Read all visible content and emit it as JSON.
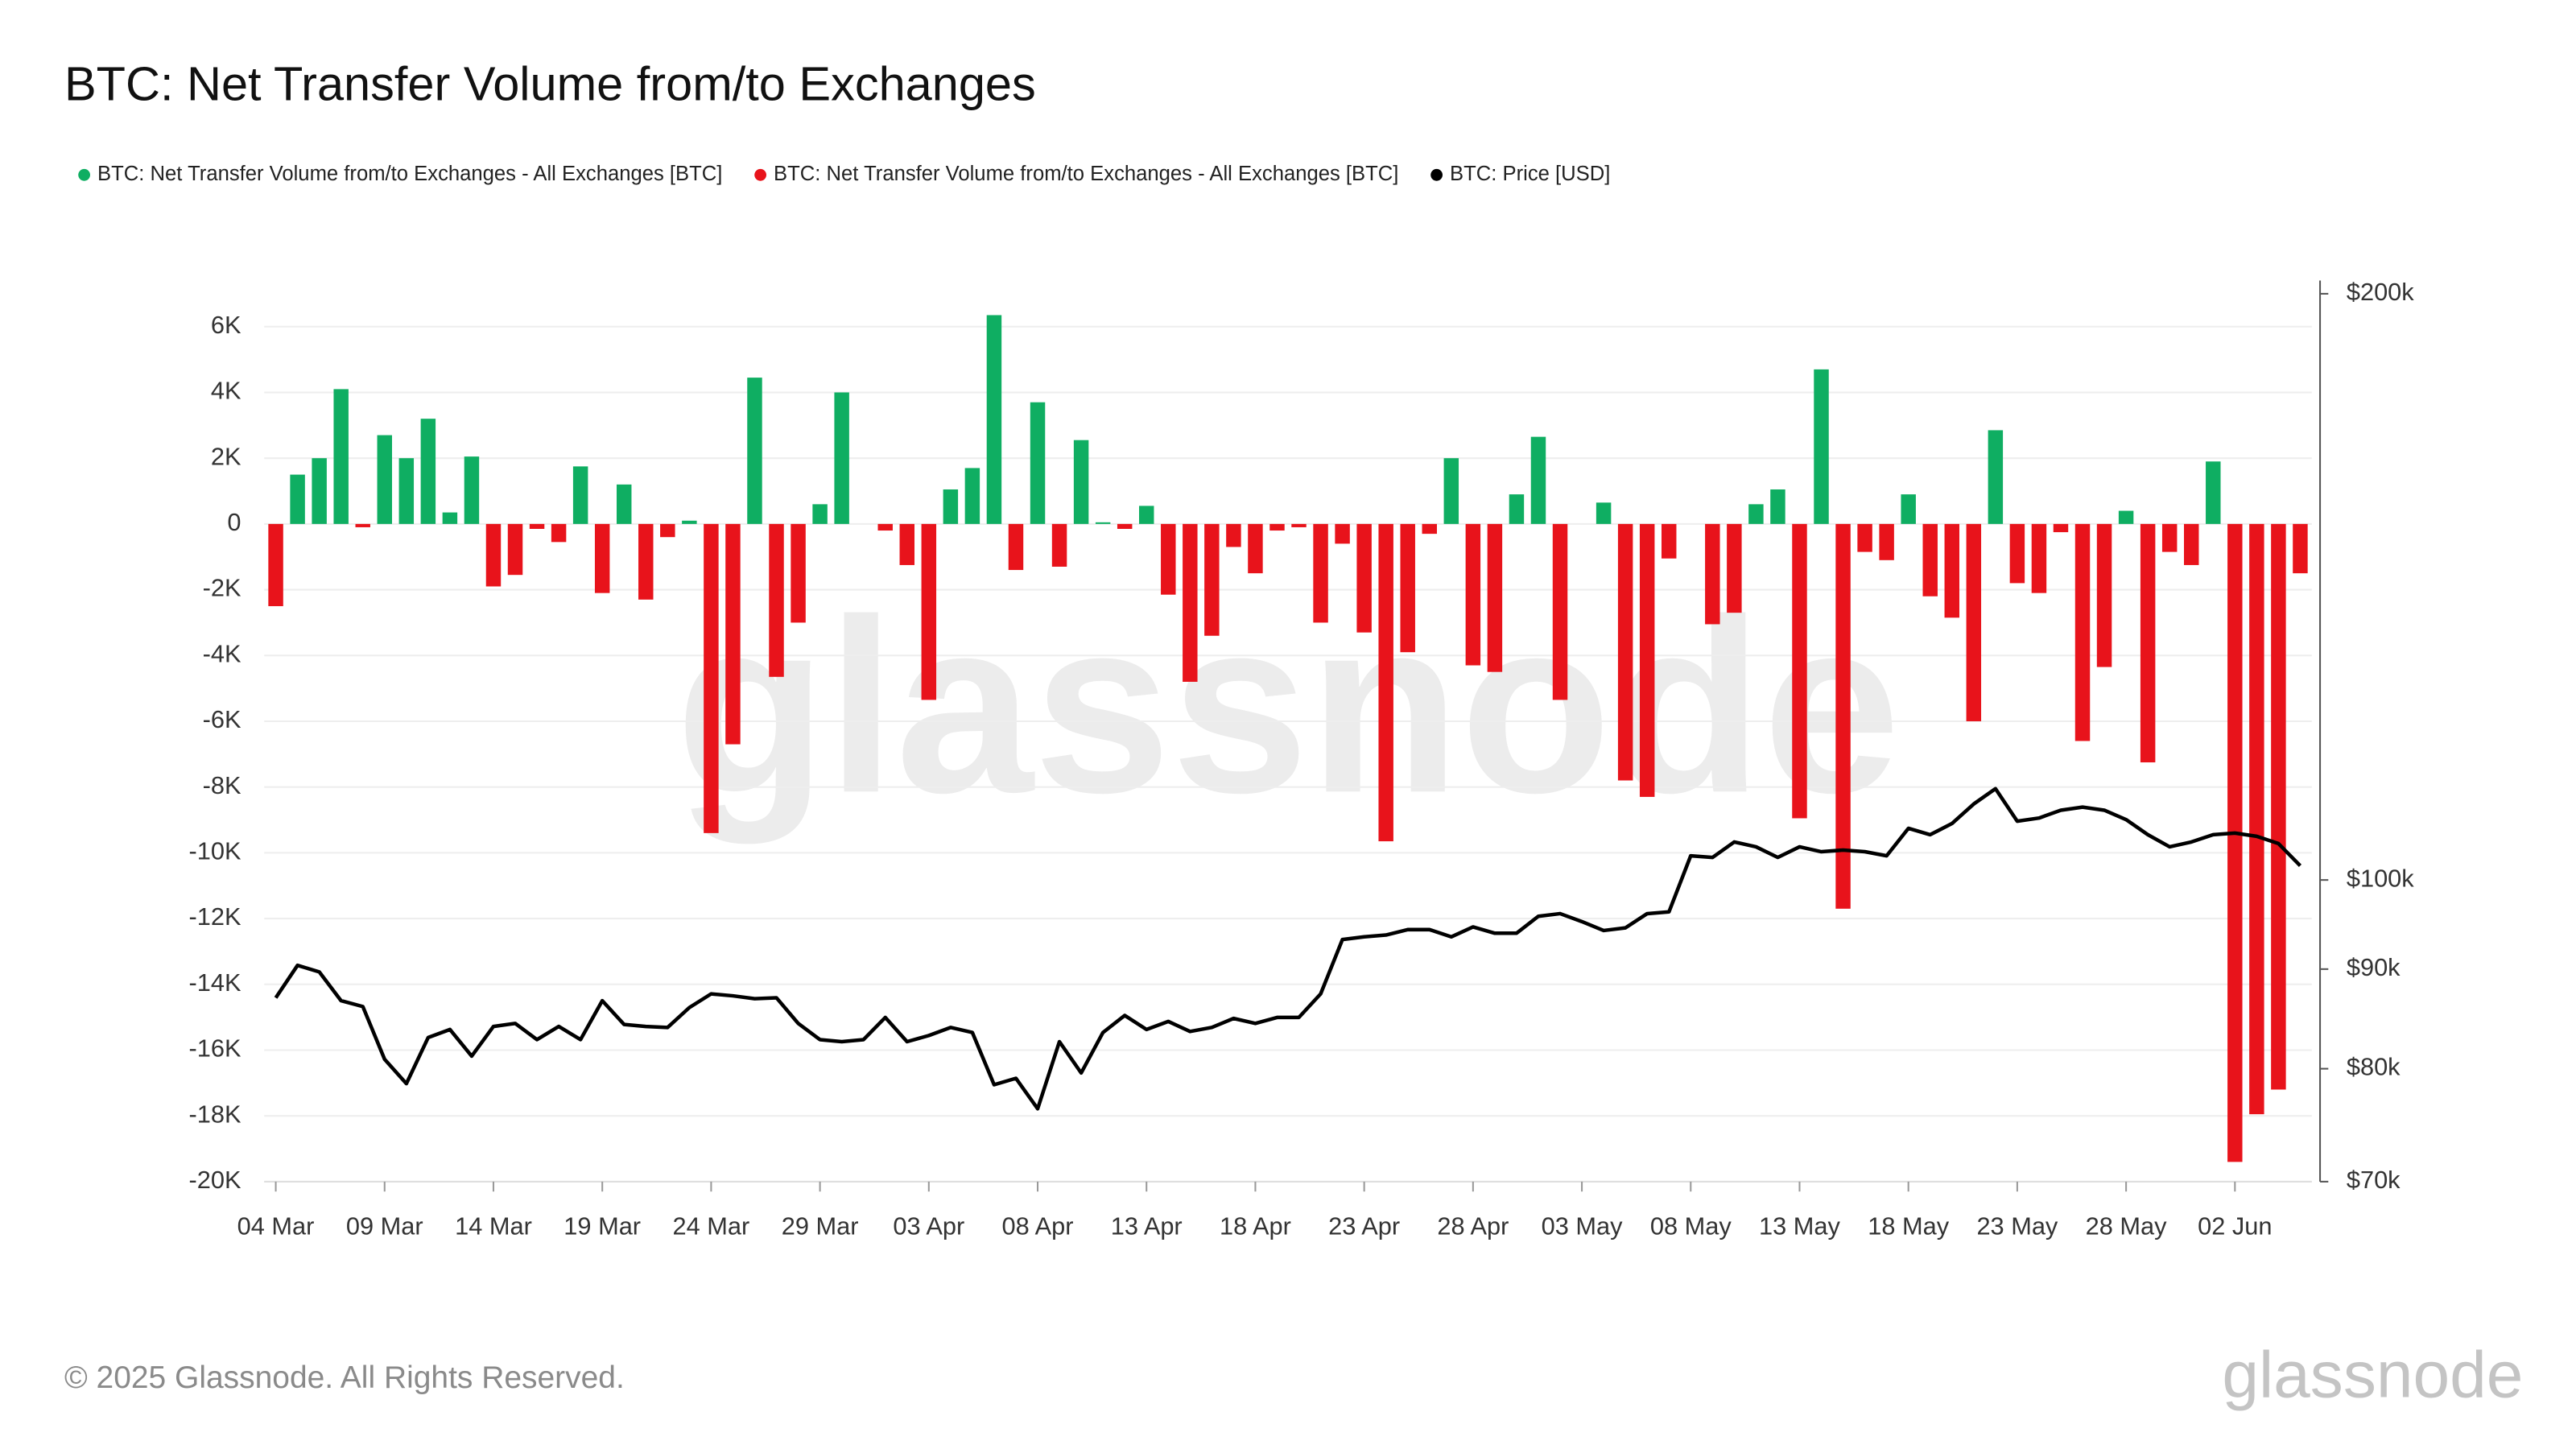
{
  "chart_data": {
    "type": "bar",
    "title": "BTC: Net Transfer Volume from/to Exchanges",
    "watermark": "glassnode",
    "legend": "top-left",
    "grid": true,
    "categories": [
      "04 Mar",
      null,
      null,
      null,
      null,
      "09 Mar",
      null,
      null,
      null,
      null,
      "14 Mar",
      null,
      null,
      null,
      null,
      "19 Mar",
      null,
      null,
      null,
      null,
      "24 Mar",
      null,
      null,
      null,
      null,
      "29 Mar",
      null,
      null,
      null,
      null,
      "03 Apr",
      null,
      null,
      null,
      null,
      "08 Apr",
      null,
      null,
      null,
      null,
      "13 Apr",
      null,
      null,
      null,
      null,
      "18 Apr",
      null,
      null,
      null,
      null,
      "23 Apr",
      null,
      null,
      null,
      null,
      "28 Apr",
      null,
      null,
      null,
      null,
      "03 May",
      null,
      null,
      null,
      null,
      "08 May",
      null,
      null,
      null,
      null,
      "13 May",
      null,
      null,
      null,
      null,
      "18 May",
      null,
      null,
      null,
      null,
      "23 May",
      null,
      null,
      null,
      null,
      "28 May",
      null,
      null,
      null,
      null,
      "02 Jun",
      null,
      null,
      null
    ],
    "series": [
      {
        "name": "BTC: Net Transfer Volume from/to Exchanges - All Exchanges [BTC]",
        "color": "#0fae62",
        "type": "bar",
        "values": [
          null,
          1500,
          2000,
          4100,
          null,
          2700,
          2000,
          3200,
          350,
          2050,
          null,
          null,
          null,
          null,
          1750,
          null,
          1200,
          null,
          null,
          100,
          null,
          null,
          4450,
          null,
          null,
          600,
          4000,
          null,
          null,
          null,
          null,
          1050,
          1700,
          6350,
          null,
          3700,
          null,
          2550,
          50,
          null,
          550,
          null,
          null,
          null,
          null,
          null,
          null,
          null,
          null,
          null,
          null,
          null,
          null,
          null,
          2000,
          null,
          null,
          900,
          2650,
          null,
          null,
          650,
          null,
          null,
          null,
          null,
          null,
          null,
          600,
          1050,
          null,
          4700,
          null,
          null,
          null,
          900,
          null,
          null,
          null,
          2850,
          null,
          null,
          null,
          null,
          null,
          400,
          null,
          null,
          null,
          1900,
          null,
          null,
          null,
          null
        ]
      },
      {
        "name": "BTC: Net Transfer Volume from/to Exchanges - All Exchanges [BTC]",
        "color": "#e8131b",
        "type": "bar",
        "values": [
          -2500,
          null,
          null,
          null,
          -100,
          null,
          null,
          null,
          null,
          null,
          -1900,
          -1550,
          -150,
          -550,
          null,
          -2100,
          null,
          -2300,
          -400,
          null,
          -9400,
          -6700,
          null,
          -4650,
          -3000,
          null,
          null,
          null,
          -200,
          -1250,
          -5350,
          null,
          null,
          null,
          -1400,
          null,
          -1300,
          null,
          null,
          -150,
          null,
          -2150,
          -4800,
          -3400,
          -700,
          -1500,
          -200,
          -100,
          -3000,
          -600,
          -3300,
          -9650,
          -3900,
          -300,
          null,
          -4300,
          -4500,
          null,
          null,
          -5350,
          null,
          null,
          -7800,
          -8300,
          -1050,
          null,
          -3050,
          -2700,
          null,
          null,
          -8950,
          null,
          -11700,
          -850,
          -1100,
          null,
          -2200,
          -2850,
          -6000,
          null,
          -1800,
          -2100,
          -250,
          -6600,
          -4350,
          null,
          -7250,
          -850,
          -1250,
          null,
          -19400,
          -17950,
          -17200,
          -1500
        ]
      },
      {
        "name": "BTC: Price [USD]",
        "color": "#000000",
        "type": "line",
        "axis": "y2",
        "values": [
          87000,
          90400,
          89700,
          86700,
          86100,
          80900,
          78600,
          83000,
          83800,
          81200,
          84100,
          84400,
          82800,
          84100,
          82800,
          86700,
          84300,
          84100,
          84000,
          86000,
          87400,
          87200,
          86900,
          87000,
          84400,
          82800,
          82600,
          82800,
          85000,
          82600,
          83200,
          84000,
          83500,
          78500,
          79100,
          76300,
          82600,
          79600,
          83500,
          85200,
          83800,
          84600,
          83600,
          84000,
          84900,
          84400,
          85000,
          85000,
          87400,
          93200,
          93500,
          93700,
          94300,
          94300,
          93500,
          94600,
          93900,
          93900,
          95800,
          96100,
          95200,
          94200,
          94500,
          96100,
          96300,
          102900,
          102700,
          104600,
          104000,
          102700,
          104000,
          103400,
          103600,
          103400,
          102900,
          106300,
          105500,
          106900,
          109400,
          111400,
          107200,
          107600,
          108600,
          109000,
          108600,
          107400,
          105500,
          104000,
          104600,
          105500,
          105700,
          105300,
          104400,
          101700
        ]
      }
    ],
    "ylim": [
      -20000,
      7000
    ],
    "yticks": [
      {
        "value": -20000,
        "label": "-20K"
      },
      {
        "value": -18000,
        "label": "-18K"
      },
      {
        "value": -16000,
        "label": "-16K"
      },
      {
        "value": -14000,
        "label": "-14K"
      },
      {
        "value": -12000,
        "label": "-12K"
      },
      {
        "value": -10000,
        "label": "-10K"
      },
      {
        "value": -8000,
        "label": "-8K"
      },
      {
        "value": -6000,
        "label": "-6K"
      },
      {
        "value": -4000,
        "label": "-4K"
      },
      {
        "value": -2000,
        "label": "-2K"
      },
      0,
      {
        "value": 2000,
        "label": "2K"
      },
      {
        "value": 4000,
        "label": "4K"
      },
      {
        "value": 6000,
        "label": "6K"
      }
    ],
    "y2lim": [
      70000,
      200000
    ],
    "y2scale": "log",
    "y2ticks": [
      {
        "value": 70000,
        "label": "$70k"
      },
      {
        "value": 80000,
        "label": "$80k"
      },
      {
        "value": 90000,
        "label": "$90k"
      },
      {
        "value": 100000,
        "label": "$100k"
      },
      {
        "value": 200000,
        "label": "$200k"
      }
    ]
  },
  "footer": {
    "copyright": "© 2025 Glassnode. All Rights Reserved.",
    "brand": "glassnode"
  }
}
